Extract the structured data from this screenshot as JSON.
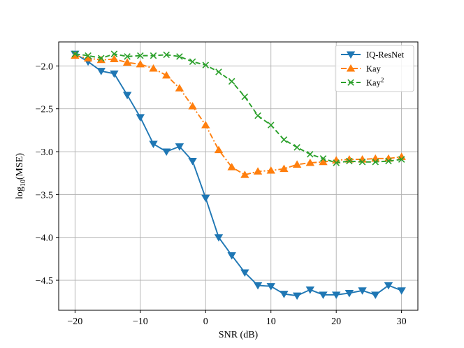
{
  "chart_data": {
    "type": "line",
    "title": "",
    "xlabel": "SNR (dB)",
    "ylabel_base": "log",
    "ylabel_sub": "10",
    "ylabel_rest": "(MSE)",
    "xlim": [
      -22.5,
      32.5
    ],
    "ylim": [
      -4.85,
      -1.72
    ],
    "xticks": [
      -20,
      -10,
      0,
      10,
      20,
      30
    ],
    "xtick_labels": [
      "−20",
      "−10",
      "0",
      "10",
      "20",
      "30"
    ],
    "yticks": [
      -2.0,
      -2.5,
      -3.0,
      -3.5,
      -4.0,
      -4.5
    ],
    "ytick_labels": [
      "−2.0",
      "−2.5",
      "−3.0",
      "−3.5",
      "−4.0",
      "−4.5"
    ],
    "grid": true,
    "legend_position": "top-right",
    "x": [
      -20,
      -18,
      -16,
      -14,
      -12,
      -10,
      -8,
      -6,
      -4,
      -2,
      0,
      2,
      4,
      6,
      8,
      10,
      12,
      14,
      16,
      18,
      20,
      22,
      24,
      26,
      28,
      30
    ],
    "series": [
      {
        "name": "IQ-ResNet",
        "color": "#1f77b4",
        "line": "solid",
        "marker": "triangle-down",
        "values": [
          -1.86,
          -1.95,
          -2.06,
          -2.09,
          -2.34,
          -2.6,
          -2.91,
          -3.0,
          -2.94,
          -3.11,
          -3.54,
          -4.0,
          -4.21,
          -4.41,
          -4.56,
          -4.57,
          -4.66,
          -4.68,
          -4.61,
          -4.67,
          -4.67,
          -4.65,
          -4.62,
          -4.67,
          -4.56,
          -4.62
        ]
      },
      {
        "name": "Kay",
        "color": "#ff7f0e",
        "line": "dashdot",
        "marker": "triangle-up",
        "values": [
          -1.88,
          -1.91,
          -1.93,
          -1.92,
          -1.96,
          -1.98,
          -2.03,
          -2.11,
          -2.26,
          -2.47,
          -2.69,
          -2.98,
          -3.18,
          -3.27,
          -3.23,
          -3.22,
          -3.2,
          -3.15,
          -3.13,
          -3.12,
          -3.1,
          -3.09,
          -3.09,
          -3.08,
          -3.08,
          -3.06
        ]
      },
      {
        "name": "Kay",
        "name_sup": "2",
        "color": "#2ca02c",
        "line": "dashed",
        "marker": "x",
        "values": [
          -1.86,
          -1.88,
          -1.91,
          -1.86,
          -1.89,
          -1.88,
          -1.88,
          -1.87,
          -1.89,
          -1.95,
          -1.99,
          -2.07,
          -2.18,
          -2.36,
          -2.58,
          -2.69,
          -2.86,
          -2.95,
          -3.03,
          -3.08,
          -3.13,
          -3.11,
          -3.12,
          -3.12,
          -3.11,
          -3.09
        ]
      }
    ]
  }
}
